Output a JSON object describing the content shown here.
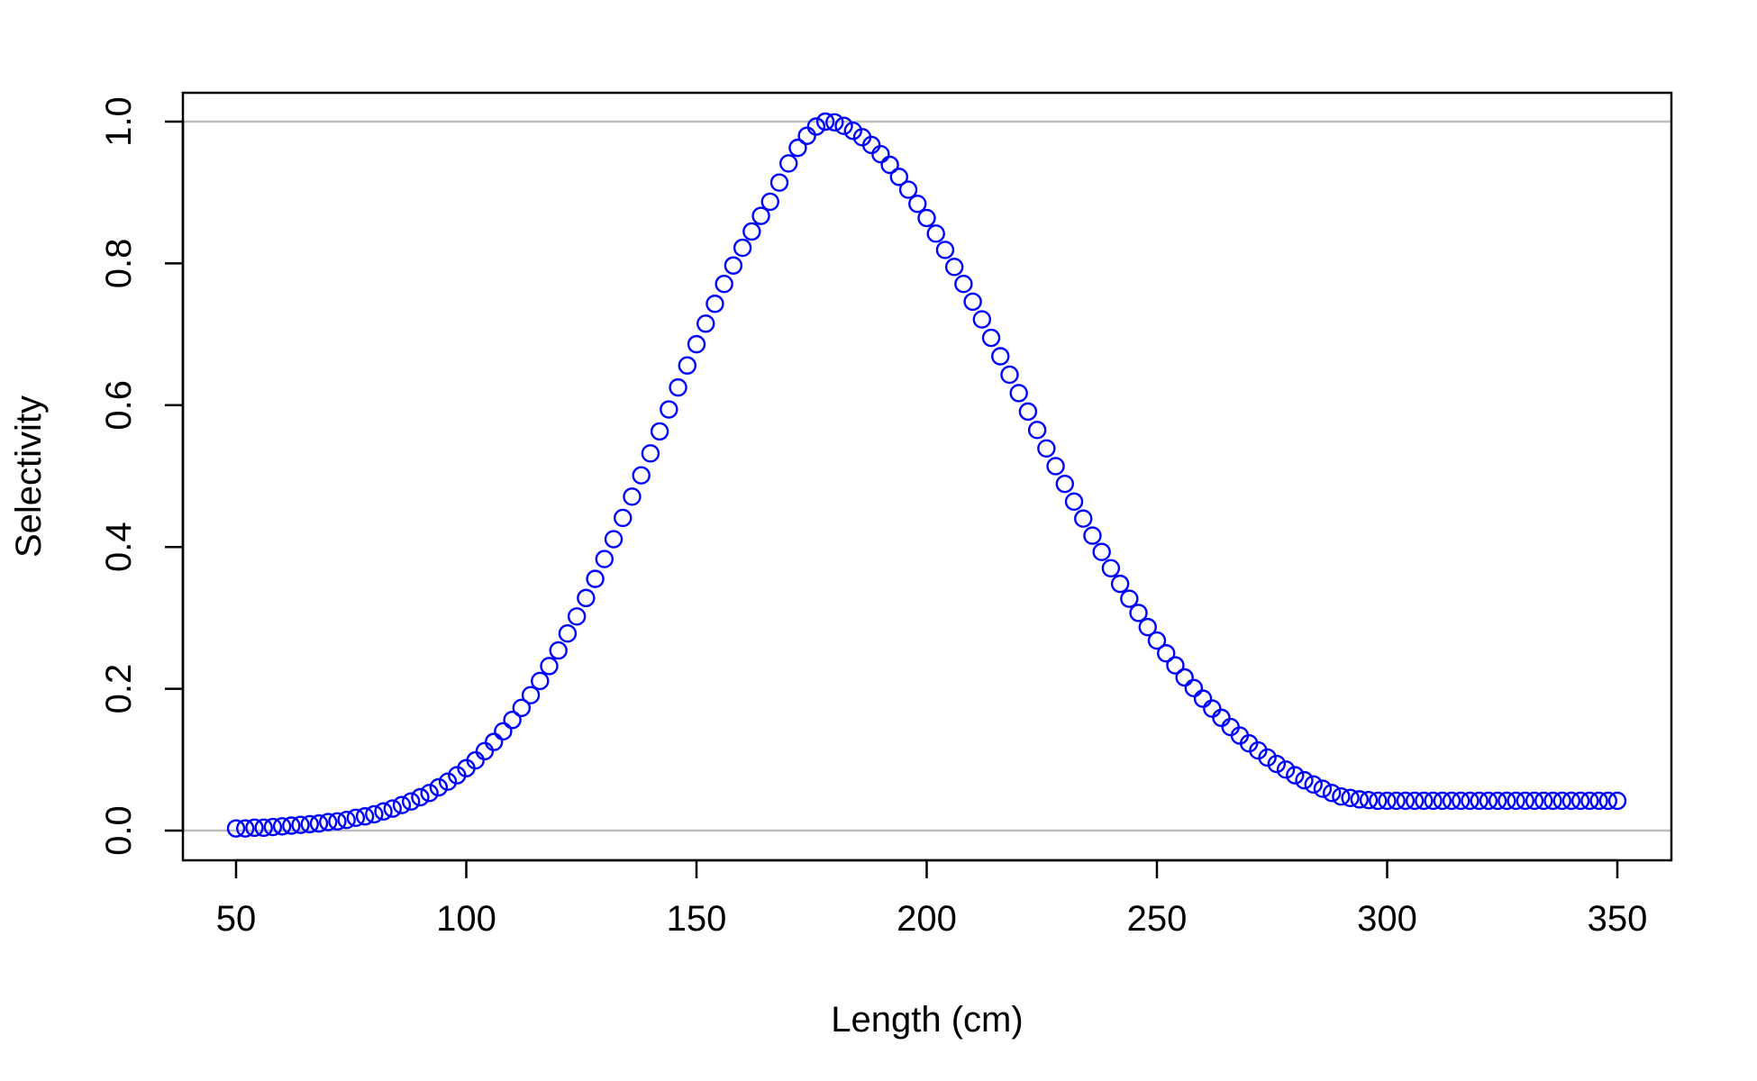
{
  "chart_data": {
    "type": "scatter",
    "title": "",
    "xlabel": "Length (cm)",
    "ylabel": "Selectivity",
    "xlim": [
      50,
      350
    ],
    "ylim": [
      0.0,
      1.0
    ],
    "x_ticks": [
      "50",
      "100",
      "150",
      "200",
      "250",
      "300",
      "350"
    ],
    "y_ticks": [
      "0.0",
      "0.2",
      "0.4",
      "0.6",
      "0.8",
      "1.0"
    ],
    "reference_lines": [
      0.0,
      1.0
    ],
    "marker": "open-circle",
    "color": "#0000ff",
    "grid": false,
    "series": [
      {
        "x": [
          50,
          52,
          54,
          56,
          58,
          60,
          62,
          64,
          66,
          68,
          70,
          72,
          74,
          76,
          78,
          80,
          82,
          84,
          86,
          88,
          90,
          92,
          94,
          96,
          98,
          100,
          102,
          104,
          106,
          108,
          110,
          112,
          114,
          116,
          118,
          120,
          122,
          124,
          126,
          128,
          130,
          132,
          134,
          136,
          138,
          140,
          142,
          144,
          146,
          148,
          150,
          152,
          154,
          156,
          158,
          160,
          162,
          164,
          166,
          168,
          170,
          172,
          174,
          176,
          178,
          180,
          182,
          184,
          186,
          188,
          190,
          192,
          194,
          196,
          198,
          200,
          202,
          204,
          206,
          208,
          210,
          212,
          214,
          216,
          218,
          220,
          222,
          224,
          226,
          228,
          230,
          232,
          234,
          236,
          238,
          240,
          242,
          244,
          246,
          248,
          250,
          252,
          254,
          256,
          258,
          260,
          262,
          264,
          266,
          268,
          270,
          272,
          274,
          276,
          278,
          280,
          282,
          284,
          286,
          288,
          290,
          292,
          294,
          296,
          298,
          300,
          302,
          304,
          306,
          308,
          310,
          312,
          314,
          316,
          318,
          320,
          322,
          324,
          326,
          328,
          330,
          332,
          334,
          336,
          338,
          340,
          342,
          344,
          346,
          348,
          350
        ],
        "y": [
          0.003,
          0.003,
          0.004,
          0.004,
          0.005,
          0.006,
          0.007,
          0.008,
          0.009,
          0.01,
          0.012,
          0.013,
          0.015,
          0.018,
          0.02,
          0.023,
          0.027,
          0.031,
          0.036,
          0.041,
          0.047,
          0.053,
          0.061,
          0.069,
          0.078,
          0.088,
          0.099,
          0.112,
          0.125,
          0.14,
          0.156,
          0.173,
          0.191,
          0.211,
          0.232,
          0.254,
          0.278,
          0.302,
          0.328,
          0.355,
          0.383,
          0.411,
          0.441,
          0.471,
          0.501,
          0.532,
          0.563,
          0.594,
          0.625,
          0.656,
          0.686,
          0.715,
          0.743,
          0.771,
          0.797,
          0.822,
          0.845,
          0.867,
          0.887,
          0.914,
          0.941,
          0.963,
          0.98,
          0.993,
          1.0,
          0.999,
          0.994,
          0.987,
          0.978,
          0.967,
          0.954,
          0.939,
          0.922,
          0.904,
          0.884,
          0.864,
          0.842,
          0.819,
          0.795,
          0.771,
          0.746,
          0.721,
          0.695,
          0.669,
          0.643,
          0.617,
          0.591,
          0.565,
          0.539,
          0.514,
          0.489,
          0.464,
          0.44,
          0.416,
          0.393,
          0.37,
          0.348,
          0.327,
          0.307,
          0.287,
          0.268,
          0.25,
          0.233,
          0.216,
          0.201,
          0.186,
          0.172,
          0.159,
          0.146,
          0.134,
          0.123,
          0.113,
          0.103,
          0.094,
          0.086,
          0.078,
          0.071,
          0.065,
          0.059,
          0.053,
          0.048,
          0.046,
          0.044,
          0.043,
          0.042,
          0.042,
          0.042,
          0.042,
          0.042,
          0.042,
          0.042,
          0.042,
          0.042,
          0.042,
          0.042,
          0.042,
          0.042,
          0.042,
          0.042,
          0.042,
          0.042,
          0.042,
          0.042,
          0.042,
          0.042,
          0.042,
          0.042,
          0.042,
          0.042,
          0.042,
          0.042
        ]
      }
    ]
  }
}
